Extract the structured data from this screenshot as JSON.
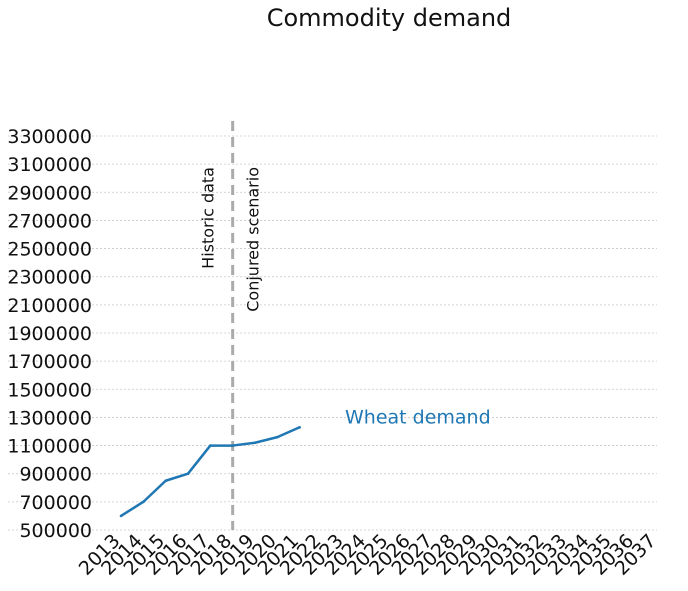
{
  "chart_data": {
    "type": "line",
    "title": "Commodity demand",
    "xlabel": "",
    "ylabel": "",
    "x_ticks": [
      "2013",
      "2014",
      "2015",
      "2016",
      "2017",
      "2018",
      "2019",
      "2020",
      "2021",
      "2022",
      "2023",
      "2024",
      "2025",
      "2026",
      "2027",
      "2028",
      "2029",
      "2030",
      "2031",
      "2032",
      "2033",
      "2034",
      "2035",
      "2036",
      "2037"
    ],
    "xlim": [
      2013,
      2037
    ],
    "y_ticks": [
      500000,
      700000,
      900000,
      1100000,
      1300000,
      1500000,
      1700000,
      1900000,
      2100000,
      2300000,
      2500000,
      2700000,
      2900000,
      3100000,
      3300000
    ],
    "y_tick_labels": [
      "500000",
      "700000",
      "900000",
      "1100000",
      "1300000",
      "1500000",
      "1700000",
      "1900000",
      "2100000",
      "2300000",
      "2500000",
      "2700000",
      "2900000",
      "3100000",
      "3300000"
    ],
    "ylim": [
      500000,
      3300000
    ],
    "grid": "horizontal dotted",
    "series": [
      {
        "name": "Wheat demand",
        "color": "#1f77b4",
        "x": [
          2013,
          2014,
          2015,
          2016,
          2017,
          2018,
          2019,
          2020,
          2021
        ],
        "y": [
          600000,
          700000,
          850000,
          900000,
          1100000,
          1100000,
          1120000,
          1160000,
          1230000
        ]
      }
    ],
    "divider": {
      "x": 2018,
      "color": "#aaaaaa",
      "left_label": "Historic data",
      "right_label": "Conjured scenario"
    }
  }
}
